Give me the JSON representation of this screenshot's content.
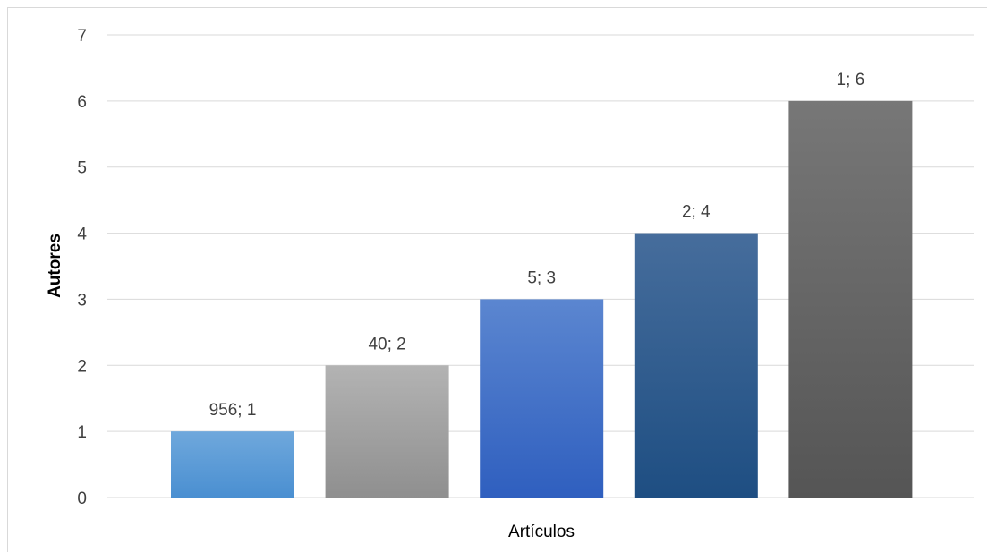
{
  "chart_data": {
    "type": "bar",
    "title": "",
    "xlabel": "Artículos",
    "ylabel": "Autores",
    "ylim": [
      0,
      7
    ],
    "yticks": [
      0,
      1,
      2,
      3,
      4,
      5,
      6,
      7
    ],
    "grid": true,
    "legend": "none",
    "bars": [
      {
        "label": "956; 1",
        "value": 1,
        "color_top": "#6fa8dc",
        "color_bottom": "#4a8fd1"
      },
      {
        "label": "40; 2",
        "value": 2,
        "color_top": "#b3b3b3",
        "color_bottom": "#8f8f8f"
      },
      {
        "label": "5; 3",
        "value": 3,
        "color_top": "#5b86d0",
        "color_bottom": "#2f5fbf"
      },
      {
        "label": "2; 4",
        "value": 4,
        "color_top": "#466d9c",
        "color_bottom": "#1e4e82"
      },
      {
        "label": "1; 6",
        "value": 6,
        "color_top": "#777777",
        "color_bottom": "#555555"
      }
    ]
  }
}
